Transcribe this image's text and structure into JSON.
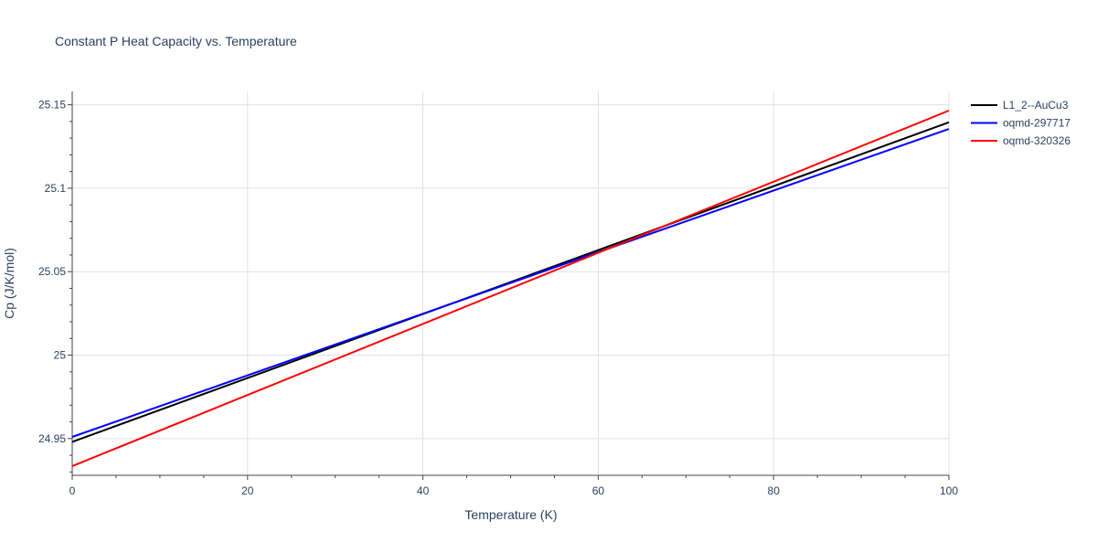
{
  "chart_data": {
    "type": "line",
    "title": "Constant P Heat Capacity vs. Temperature",
    "xlabel": "Temperature (K)",
    "ylabel": "Cp (J/K/mol)",
    "xlim": [
      0,
      100
    ],
    "ylim": [
      24.928,
      25.158
    ],
    "x_ticks": [
      0,
      20,
      40,
      60,
      80,
      100
    ],
    "x_tick_labels": [
      "0",
      "20",
      "40",
      "60",
      "80",
      "100"
    ],
    "y_ticks": [
      24.95,
      25,
      25.05,
      25.1,
      25.15
    ],
    "y_tick_labels": [
      "24.95",
      "25",
      "25.05",
      "25.1",
      "25.15"
    ],
    "grid": true,
    "legend_position": "top-right",
    "series": [
      {
        "name": "L1_2--AuCu3",
        "color": "#000000",
        "x": [
          0,
          100
        ],
        "y": [
          24.948,
          25.1395
        ]
      },
      {
        "name": "oqmd-297717",
        "color": "#0000ff",
        "x": [
          0,
          100
        ],
        "y": [
          24.951,
          25.1355
        ]
      },
      {
        "name": "oqmd-320326",
        "color": "#ff0000",
        "x": [
          0,
          100
        ],
        "y": [
          24.9335,
          25.1465
        ]
      }
    ]
  }
}
